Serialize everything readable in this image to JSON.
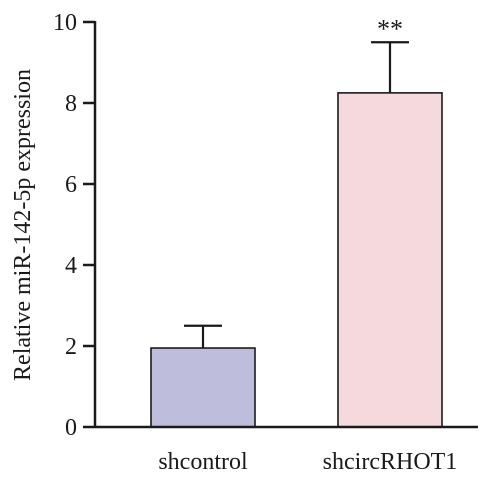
{
  "chart_data": {
    "type": "bar",
    "title": "",
    "xlabel": "",
    "ylabel": "Relative miR-142-5p expression",
    "ylim": [
      0,
      10
    ],
    "yticks": [
      0,
      2,
      4,
      6,
      8,
      10
    ],
    "grid": false,
    "categories": [
      "shcontrol",
      "shcircRHOT1"
    ],
    "values": [
      1.95,
      8.25
    ],
    "errors": [
      0.55,
      1.25
    ],
    "annotations": [
      "",
      "**"
    ],
    "colors": [
      "#bfbddc",
      "#f5d9dc"
    ]
  }
}
